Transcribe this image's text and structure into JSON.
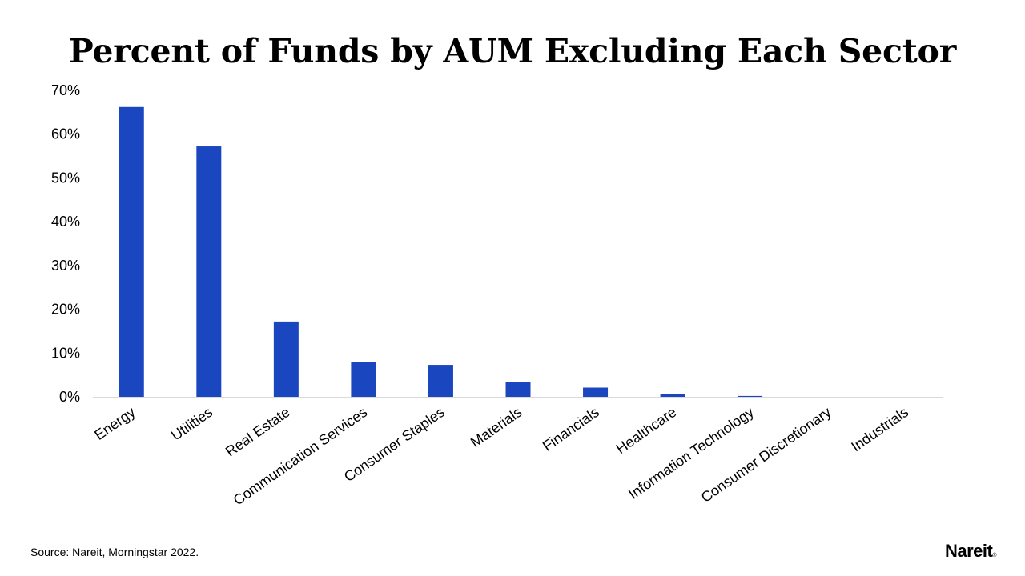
{
  "chart_data": {
    "type": "bar",
    "title": "Percent of Funds by AUM Excluding Each Sector",
    "categories": [
      "Energy",
      "Utilities",
      "Real Estate",
      "Communication Services",
      "Consumer Staples",
      "Materials",
      "Financials",
      "Healthcare",
      "Information Technology",
      "Consumer Discretionary",
      "Industrials"
    ],
    "values": [
      66.2,
      57.2,
      17.2,
      7.9,
      7.3,
      3.3,
      2.1,
      0.7,
      0.2,
      0,
      0
    ],
    "ylim": [
      0,
      70
    ],
    "yticks": [
      0,
      10,
      20,
      30,
      40,
      50,
      60,
      70
    ],
    "ytick_format": "percent",
    "bar_color": "#1a47c0",
    "grid": false,
    "xlabel": "",
    "ylabel": ""
  },
  "footer": {
    "source": "Source: Nareit, Morningstar 2022.",
    "logo_text": "Nareit",
    "logo_mark": "®"
  }
}
